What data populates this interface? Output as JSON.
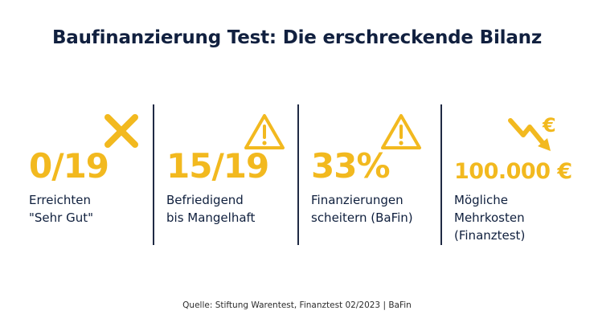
{
  "title": "Baufinanzierung Test: Die erschreckende Bilanz",
  "stats": [
    {
      "value": "0/19",
      "label_lines": [
        "Erreichten",
        "\"Sehr Gut\""
      ],
      "icon": "x-mark-icon"
    },
    {
      "value": "15/19",
      "label_lines": [
        "Befriedigend",
        "bis Mangelhaft"
      ],
      "icon": "warning-icon"
    },
    {
      "value": "33%",
      "label_lines": [
        "Finanzierungen",
        "scheitern (BaFin)"
      ],
      "icon": "warning-icon"
    },
    {
      "value": "100.000 €",
      "label_lines": [
        "Mögliche",
        "Mehrkosten",
        "(Finanztest)"
      ],
      "icon": "euro-trend-down-icon"
    }
  ],
  "source": "Quelle: Stiftung Warentest, Finanztest 02/2023 | BaFin",
  "colors": {
    "accent": "#f2b91f",
    "text": "#0f1f3d"
  }
}
